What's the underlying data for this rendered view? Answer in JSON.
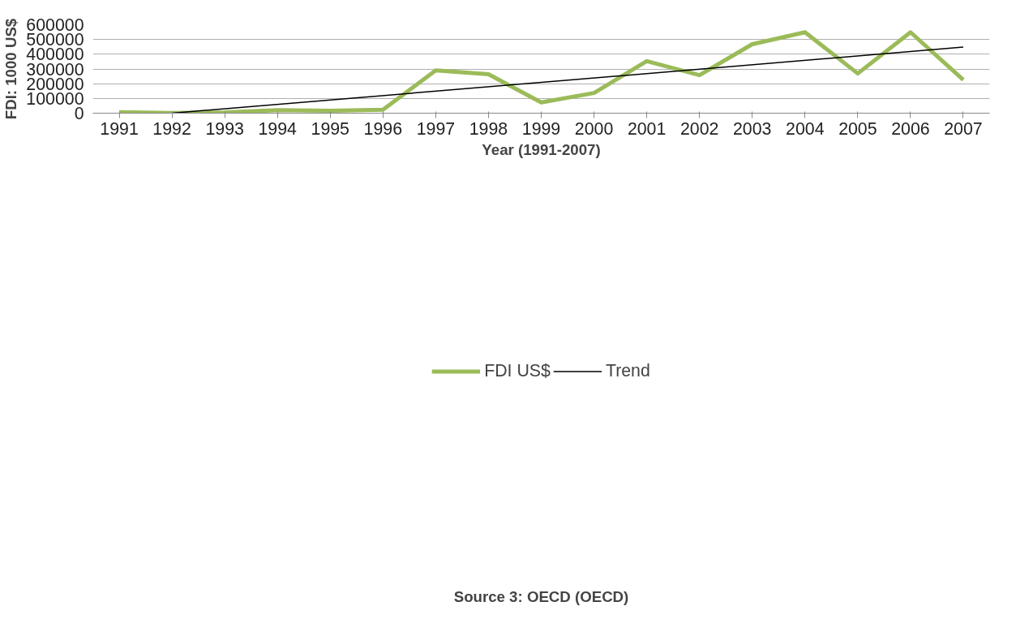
{
  "chart_data": {
    "type": "line",
    "xlabel": "Year (1991-2007)",
    "ylabel": "FDI: 1000 US$",
    "x": [
      1991,
      1992,
      1993,
      1994,
      1995,
      1996,
      1997,
      1998,
      1999,
      2000,
      2001,
      2002,
      2003,
      2004,
      2005,
      2006,
      2007
    ],
    "xlim": [
      1990.5,
      2007.5
    ],
    "xticks": [
      1991,
      1992,
      1993,
      1994,
      1995,
      1996,
      1997,
      1998,
      1999,
      2000,
      2001,
      2002,
      2003,
      2004,
      2005,
      2006,
      2007
    ],
    "ylim": [
      0,
      600000
    ],
    "yticks": [
      0,
      100000,
      200000,
      300000,
      400000,
      500000,
      600000
    ],
    "series": [
      {
        "name": "FDI US$",
        "color": "#9bbb59",
        "values": [
          7000,
          1000,
          5000,
          20000,
          17000,
          24000,
          291000,
          264000,
          73000,
          137000,
          353000,
          258000,
          468000,
          549000,
          269000,
          549000,
          226000
        ]
      },
      {
        "name": "Trend",
        "type": "line",
        "color": "#000000",
        "x": [
          1992,
          2007
        ],
        "values": [
          0,
          448000
        ]
      }
    ],
    "grid": "y",
    "legend": "bottom",
    "marker": "none",
    "annotations": [
      "Source 3: OECD (OECD)"
    ]
  }
}
